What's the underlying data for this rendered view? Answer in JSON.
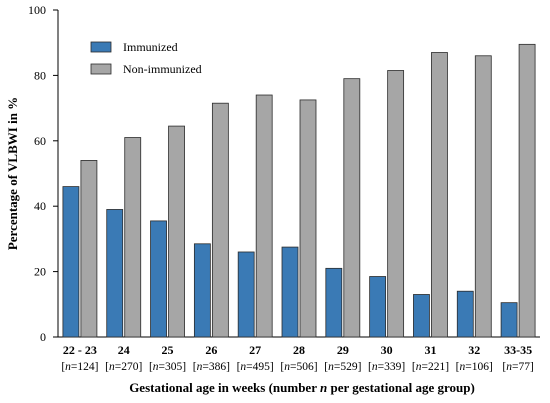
{
  "chart_data": {
    "type": "bar",
    "categories": [
      "22 - 23",
      "24",
      "25",
      "26",
      "27",
      "28",
      "29",
      "30",
      "31",
      "32",
      "33-35"
    ],
    "group_sizes": [
      "124",
      "270",
      "305",
      "386",
      "495",
      "506",
      "529",
      "339",
      "221",
      "106",
      "77"
    ],
    "series": [
      {
        "name": "Immunized",
        "color": "#3a7ab5",
        "values": [
          46,
          39,
          35.5,
          28.5,
          26,
          27.5,
          21,
          18.5,
          13,
          14,
          10.5
        ]
      },
      {
        "name": "Non-immunized",
        "color": "#a6a6a6",
        "values": [
          54,
          61,
          64.5,
          71.5,
          74,
          72.5,
          79,
          81.5,
          87,
          86,
          89.5
        ]
      }
    ],
    "xlabel": "Gestational age in weeks (number n per gestational age group)",
    "ylabel": "Percentage of VLBWI in %",
    "ylim": [
      0,
      100
    ],
    "yticks": [
      0,
      20,
      40,
      60,
      80,
      100
    ],
    "grid": false,
    "legend_position": "top-left"
  }
}
